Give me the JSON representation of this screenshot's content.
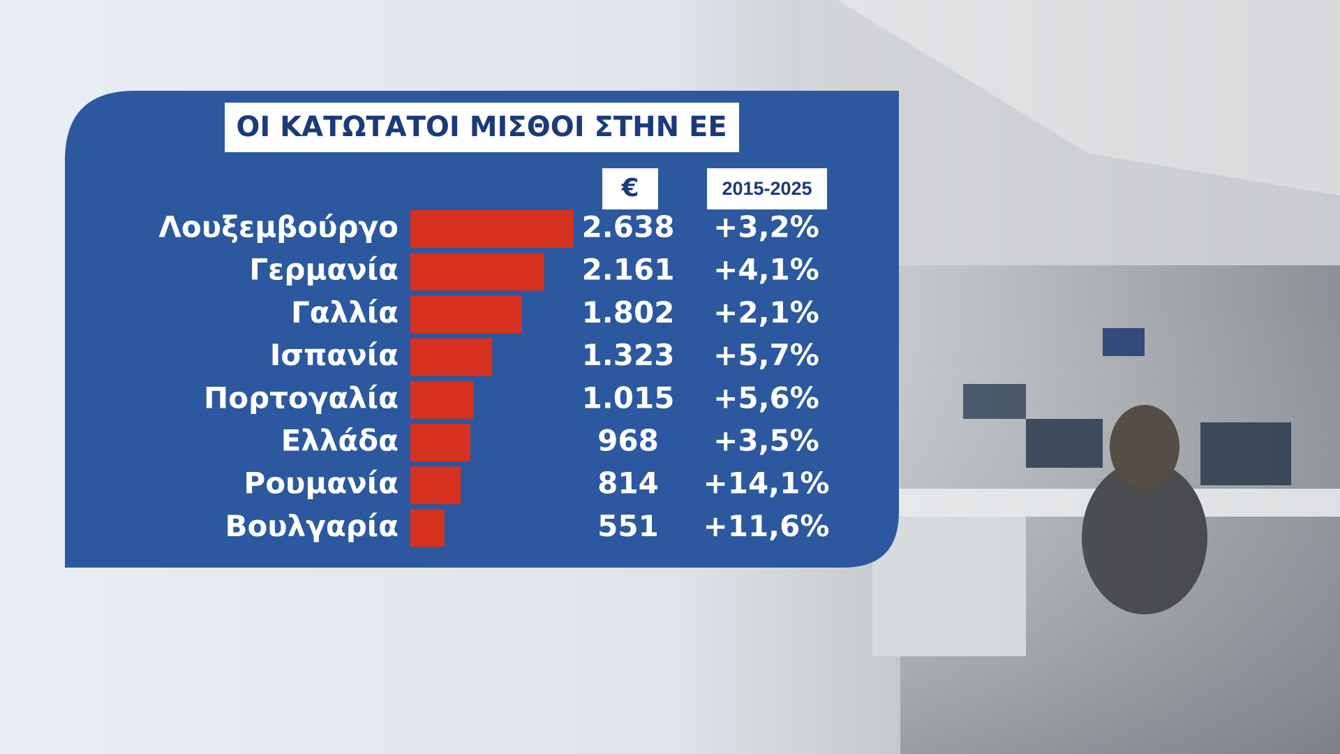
{
  "chart_data": {
    "type": "bar",
    "title": "ΟΙ ΚΑΤΩΤΑΤΟΙ ΜΙΣΘΟΙ ΣΤΗΝ ΕΕ",
    "categories": [
      "Λουξεμβούργο",
      "Γερμανία",
      "Γαλλία",
      "Ισπανία",
      "Πορτογαλία",
      "Ελλάδα",
      "Ρουμανία",
      "Βουλγαρία"
    ],
    "series": [
      {
        "name": "€",
        "color": "#d7311f",
        "values": [
          2638,
          2161,
          1802,
          1323,
          1015,
          968,
          814,
          551
        ],
        "value_labels": [
          "2.638",
          "2.161",
          "1.802",
          "1.323",
          "1.015",
          "968",
          "814",
          "551"
        ]
      },
      {
        "name": "2015-2025",
        "values": [
          3.2,
          4.1,
          2.1,
          5.7,
          5.6,
          3.5,
          14.1,
          11.6
        ],
        "value_labels": [
          "+3,2%",
          "+4,1%",
          "+2,1%",
          "+5,7%",
          "+5,6%",
          "+3,5%",
          "+14,1%",
          "+11,6%"
        ]
      }
    ]
  }
}
